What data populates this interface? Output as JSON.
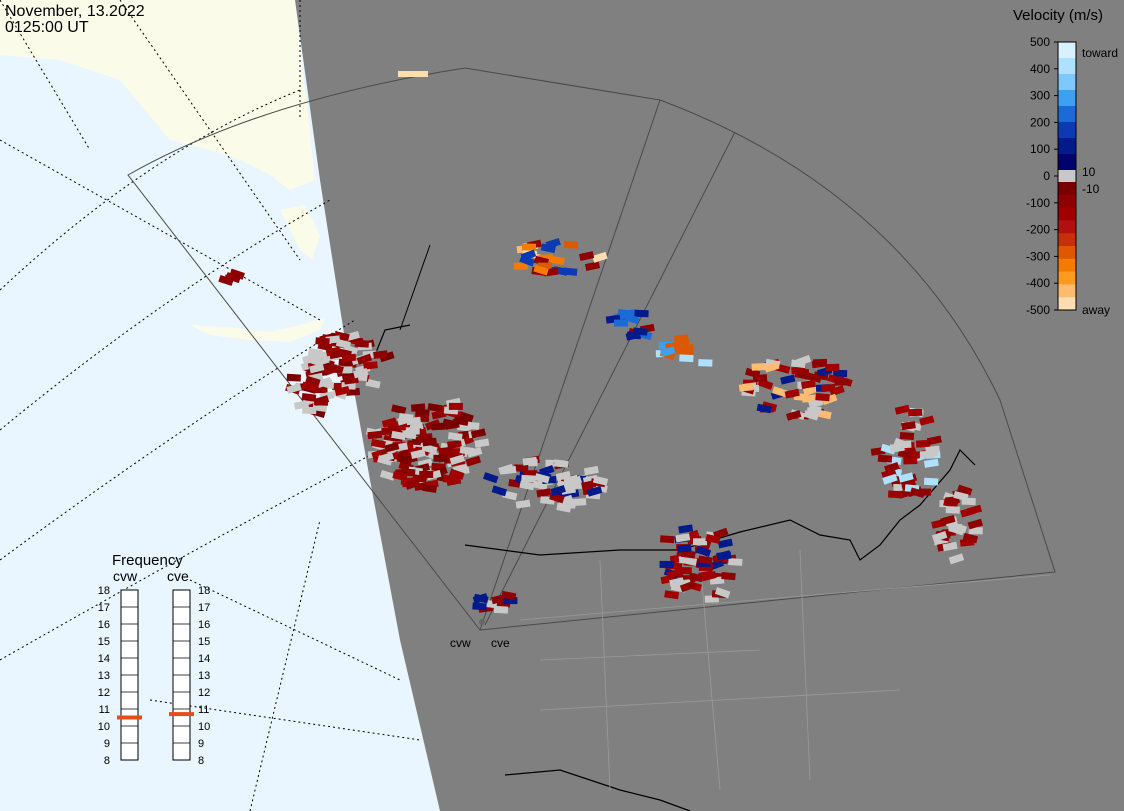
{
  "header": {
    "date": "November, 13.2022",
    "time": "0125:00 UT"
  },
  "velocity_scale": {
    "title": "Velocity (m/s)",
    "ticks": [
      "500",
      "400",
      "300",
      "200",
      "100",
      "0",
      "-100",
      "-200",
      "-300",
      "-400",
      "-500"
    ],
    "labels": {
      "toward": "toward",
      "away": "away",
      "pos": "10",
      "neg": "-10"
    },
    "colors": [
      "#d8f0ff",
      "#aee0ff",
      "#7cc8ff",
      "#3ea0f0",
      "#1a6ad8",
      "#0c3ab0",
      "#021a8a",
      "#00006e",
      "#7a0000",
      "#8f0000",
      "#a00000",
      "#b21010",
      "#c53008",
      "#de5800",
      "#f47a00",
      "#ff9a20",
      "#ffbb70",
      "#ffddb0"
    ]
  },
  "frequency_panel": {
    "title": "Frequency",
    "radars": [
      {
        "name": "cvw",
        "value_mhz": 10.5
      },
      {
        "name": "cve",
        "value_mhz": 10.7
      }
    ],
    "ticks": [
      "18",
      "17",
      "16",
      "15",
      "14",
      "13",
      "12",
      "11",
      "10",
      "9",
      "8"
    ],
    "marker_color": "#e84a1a"
  },
  "map": {
    "radar_labels": [
      "cvw",
      "cve"
    ],
    "colors": {
      "ocean": "#e9f6ff",
      "land_off": "#fbfbe9",
      "land": "#808080",
      "border": "#000000",
      "fov": "#4a4a4a",
      "no_vel": "#c8c8c8"
    }
  }
}
